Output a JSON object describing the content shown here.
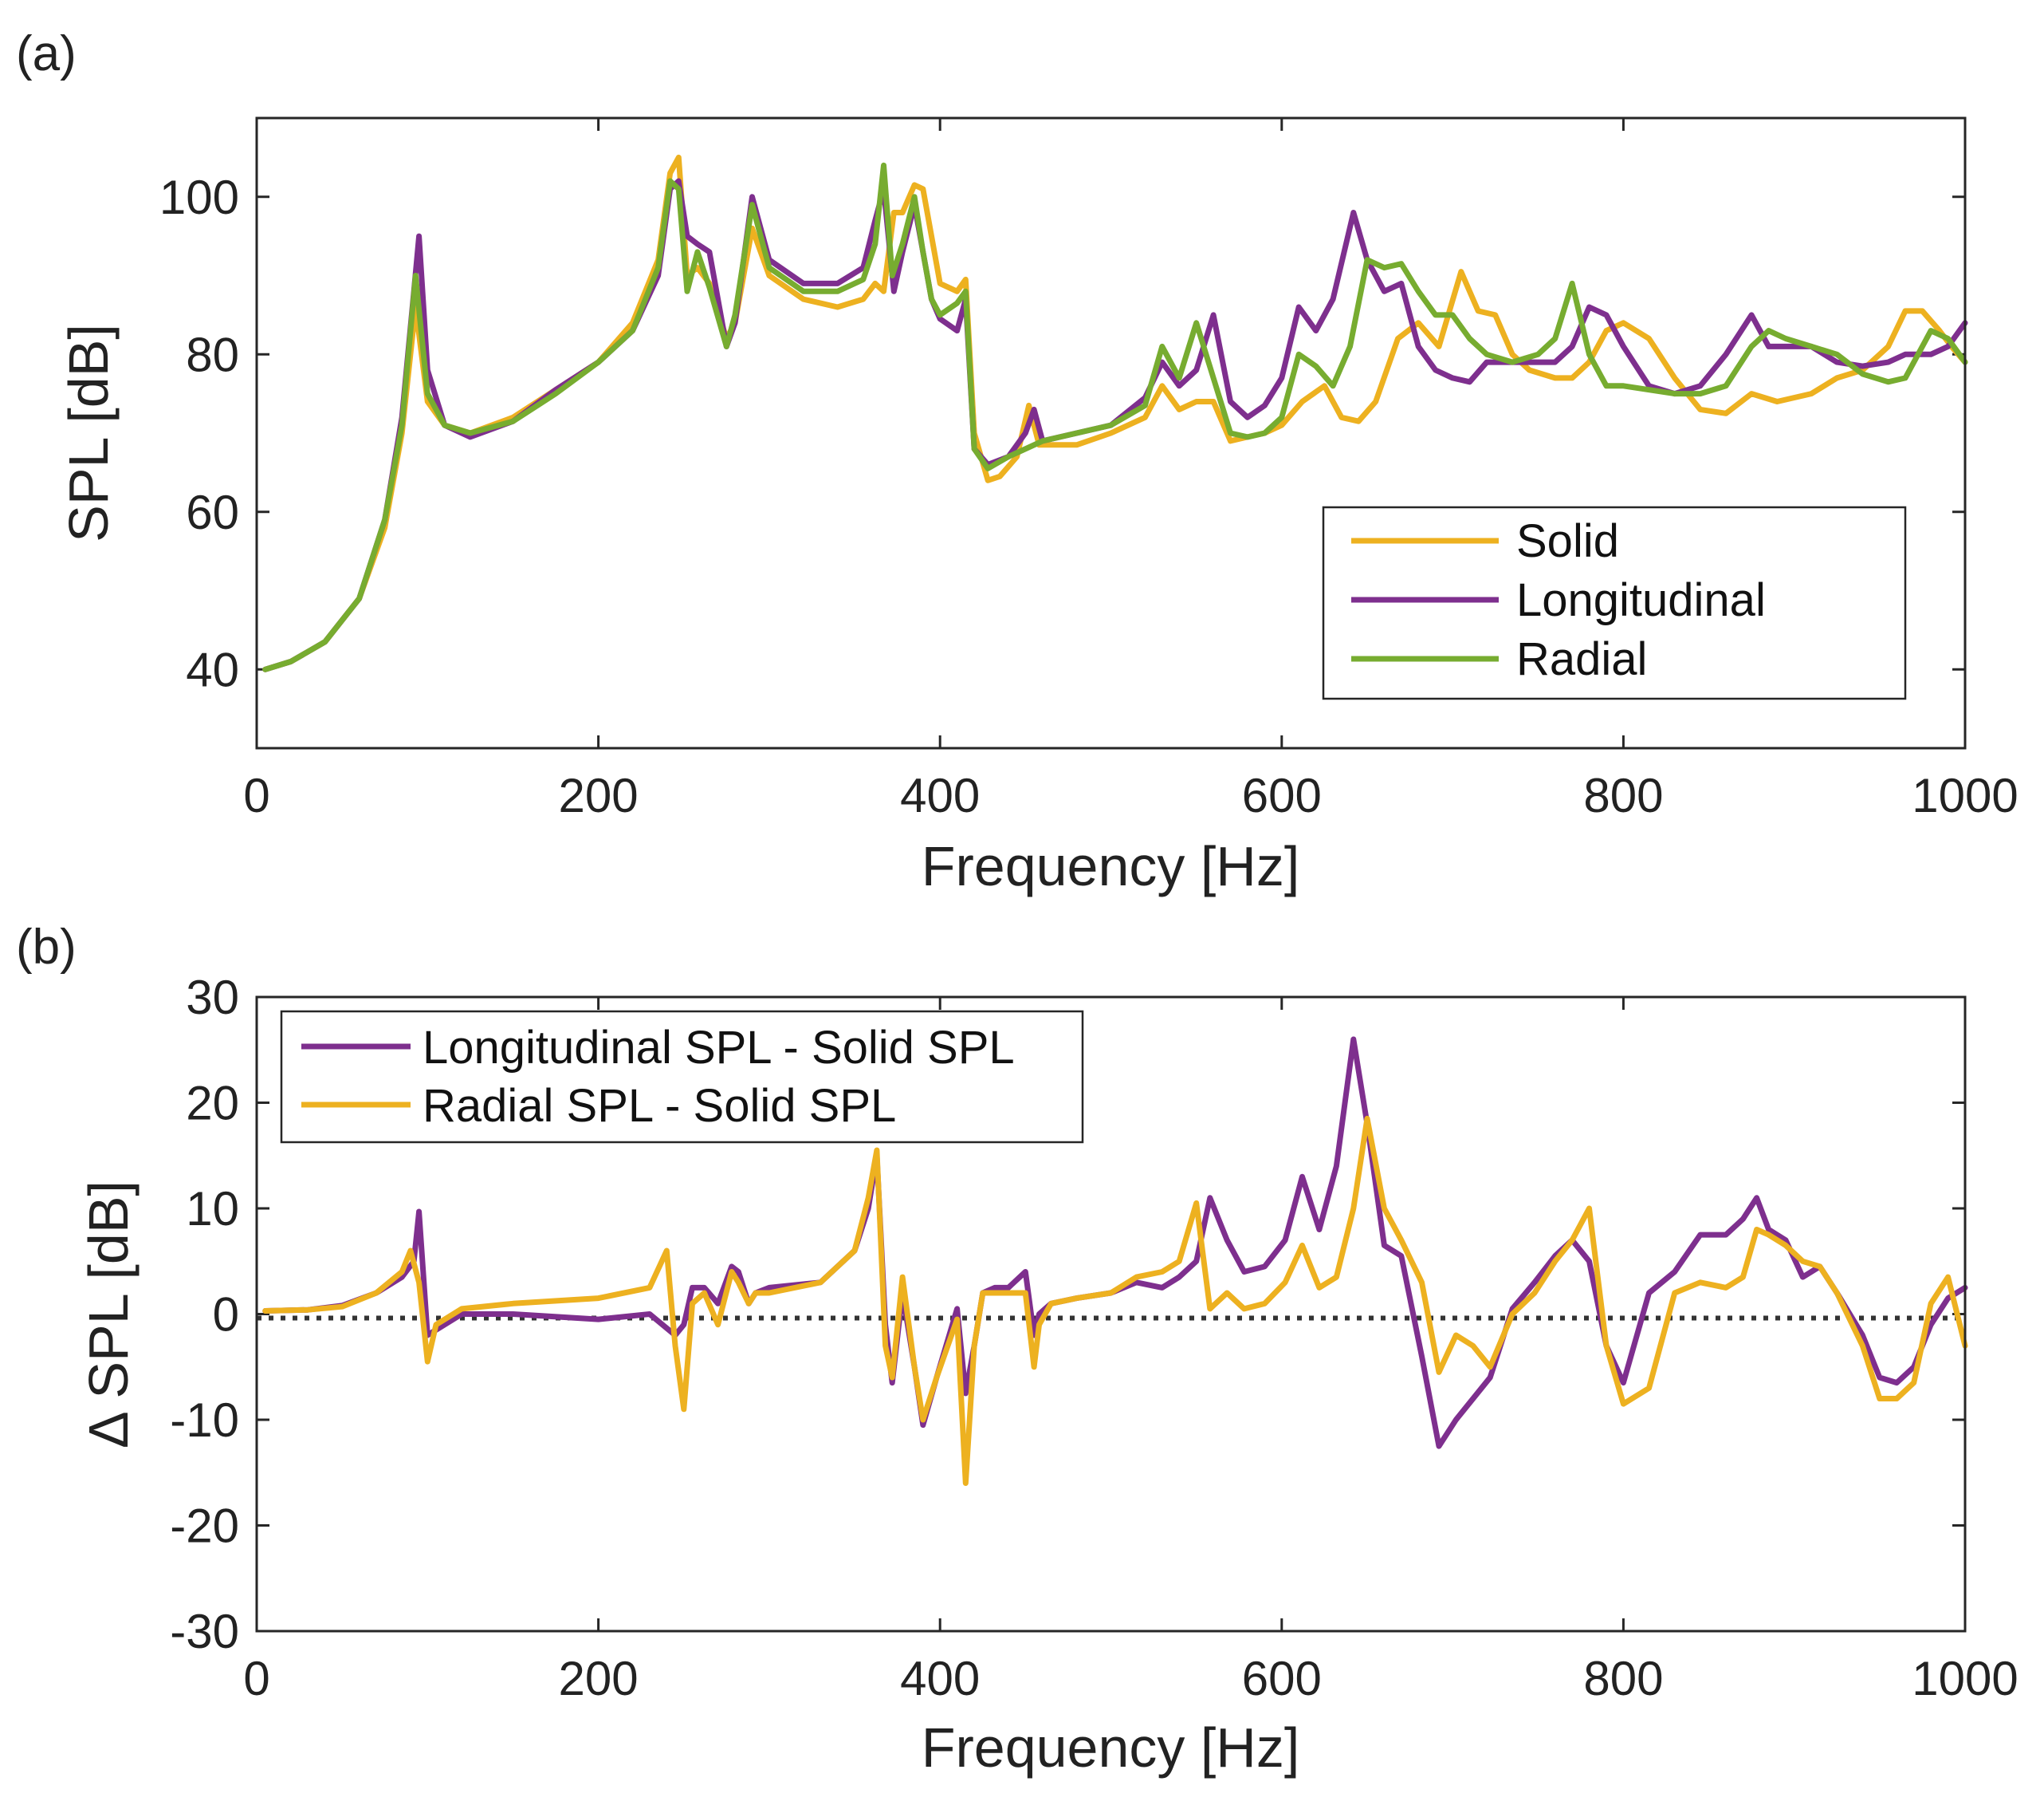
{
  "colors": {
    "solid": "#EDB120",
    "longitudinal": "#7E2F8E",
    "radial": "#77AC30",
    "zero_line": "#333333"
  },
  "chart_data": [
    {
      "type": "line",
      "panel_label": "(a)",
      "xlabel": "Frequency [Hz]",
      "ylabel": "SPL [dB]",
      "xlim": [
        0,
        1000
      ],
      "ylim": [
        30,
        110
      ],
      "xticks": [
        0,
        200,
        400,
        600,
        800,
        1000
      ],
      "yticks": [
        40,
        60,
        80,
        100
      ],
      "xtick_labels": [
        "0",
        "200",
        "400",
        "600",
        "800",
        "1000"
      ],
      "ytick_labels": [
        "40",
        "60",
        "80",
        "100"
      ],
      "legend": {
        "position": "lower-right",
        "entries": [
          "Solid",
          "Longitudinal",
          "Radial"
        ]
      },
      "series": [
        {
          "name": "Solid",
          "color_key": "solid",
          "x": [
            5,
            20,
            40,
            60,
            75,
            85,
            93,
            100,
            110,
            125,
            150,
            175,
            200,
            220,
            235,
            242,
            247,
            252,
            258,
            265,
            275,
            280,
            290,
            300,
            320,
            340,
            355,
            362,
            367,
            373,
            378,
            385,
            390,
            395,
            400,
            410,
            415,
            420,
            428,
            435,
            445,
            452,
            458,
            465,
            480,
            500,
            520,
            530,
            540,
            550,
            560,
            570,
            580,
            590,
            600,
            612,
            625,
            635,
            645,
            655,
            668,
            680,
            692,
            705,
            715,
            725,
            735,
            745,
            760,
            770,
            780,
            790,
            800,
            815,
            830,
            845,
            860,
            875,
            890,
            910,
            925,
            940,
            955,
            965,
            975,
            985,
            992,
            1000
          ],
          "y": [
            40,
            41,
            43.5,
            49,
            58,
            70,
            86,
            74,
            71,
            70,
            72,
            75.5,
            79,
            84,
            92,
            103,
            105,
            90,
            91,
            89,
            82,
            84,
            96,
            90,
            87,
            86,
            87,
            89,
            88,
            98,
            98,
            101.5,
            101,
            95,
            89,
            88,
            89.5,
            70,
            64,
            64.5,
            67,
            73.5,
            68.5,
            68.5,
            68.5,
            70,
            72,
            76,
            73,
            74,
            74,
            69,
            69.5,
            70,
            71,
            74,
            76,
            72,
            71.5,
            74,
            82,
            84,
            81,
            90.5,
            85.5,
            85,
            80,
            78,
            77,
            77,
            79,
            83,
            84,
            82,
            77,
            73,
            72.5,
            75,
            74,
            75,
            77,
            78,
            81,
            85.5,
            85.5,
            83,
            81,
            79
          ]
        },
        {
          "name": "Longitudinal",
          "color_key": "longitudinal",
          "x": [
            5,
            20,
            40,
            60,
            75,
            85,
            92,
            95,
            100,
            110,
            125,
            150,
            175,
            200,
            220,
            235,
            242,
            247,
            252,
            258,
            265,
            275,
            280,
            290,
            300,
            320,
            340,
            355,
            362,
            367,
            373,
            378,
            385,
            390,
            395,
            400,
            410,
            415,
            420,
            428,
            440,
            450,
            455,
            460,
            480,
            500,
            520,
            530,
            540,
            550,
            560,
            570,
            580,
            590,
            600,
            610,
            620,
            630,
            642,
            650,
            660,
            670,
            680,
            690,
            700,
            710,
            720,
            735,
            750,
            760,
            770,
            780,
            790,
            800,
            815,
            830,
            845,
            860,
            875,
            885,
            895,
            910,
            925,
            940,
            955,
            965,
            980,
            990,
            1000
          ],
          "y": [
            40,
            41,
            43.5,
            49,
            59,
            72,
            88,
            95,
            78,
            71,
            69.5,
            71.5,
            75.5,
            79,
            83,
            90,
            101,
            102,
            95,
            94,
            93,
            81,
            84,
            100,
            92,
            89,
            89,
            91,
            97,
            101,
            88,
            93,
            99,
            93,
            87,
            84.5,
            83,
            87,
            68,
            66,
            67,
            70,
            73,
            69,
            70,
            71,
            74.5,
            79,
            76,
            78,
            85,
            74,
            72,
            73.5,
            77,
            86,
            83,
            87,
            98,
            92,
            88,
            89,
            81,
            78,
            77,
            76.5,
            79,
            79,
            79,
            79,
            81,
            86,
            85,
            81,
            76,
            75,
            76,
            80,
            85,
            81,
            81,
            81,
            79,
            78.5,
            79,
            80,
            80,
            81,
            84
          ]
        },
        {
          "name": "Radial",
          "color_key": "radial",
          "x": [
            5,
            20,
            40,
            60,
            75,
            85,
            93,
            100,
            110,
            125,
            150,
            175,
            200,
            220,
            235,
            242,
            247,
            252,
            258,
            265,
            275,
            280,
            290,
            300,
            320,
            340,
            355,
            362,
            367,
            372,
            378,
            385,
            390,
            395,
            400,
            410,
            415,
            420,
            428,
            440,
            450,
            460,
            480,
            500,
            520,
            530,
            540,
            550,
            560,
            570,
            580,
            590,
            600,
            610,
            620,
            630,
            640,
            650,
            660,
            670,
            680,
            690,
            700,
            710,
            720,
            735,
            750,
            760,
            770,
            780,
            790,
            800,
            815,
            830,
            845,
            860,
            875,
            885,
            895,
            910,
            925,
            940,
            955,
            965,
            980,
            990,
            1000
          ],
          "y": [
            40,
            41,
            43.5,
            49,
            59,
            71,
            90,
            75,
            71,
            70,
            71.5,
            75,
            79,
            83,
            91,
            102,
            101,
            88,
            93,
            88.5,
            81,
            85,
            99,
            91,
            88,
            88,
            89.5,
            94,
            104,
            90,
            94,
            100,
            93,
            87,
            85,
            86.5,
            88,
            68,
            65.5,
            67,
            68,
            69,
            70,
            71,
            73.5,
            81,
            77,
            84,
            77,
            70,
            69.5,
            70,
            72,
            80,
            78.5,
            76,
            81,
            92,
            91,
            91.5,
            88,
            85,
            85,
            82,
            80,
            79,
            80,
            82,
            89,
            80,
            76,
            76,
            75.5,
            75,
            75,
            76,
            81,
            83,
            82,
            81,
            80,
            77.5,
            76.5,
            77,
            83,
            82,
            79
          ]
        }
      ]
    },
    {
      "type": "line",
      "panel_label": "(b)",
      "xlabel": "Frequency [Hz]",
      "ylabel": "Δ SPL [dB]",
      "xlim": [
        0,
        1000
      ],
      "ylim": [
        -30,
        30
      ],
      "xticks": [
        0,
        200,
        400,
        600,
        800,
        1000
      ],
      "yticks": [
        -30,
        -20,
        -10,
        0,
        10,
        20,
        30
      ],
      "xtick_labels": [
        "0",
        "200",
        "400",
        "600",
        "800",
        "1000"
      ],
      "ytick_labels": [
        "-30",
        "-20",
        "-10",
        "0",
        "10",
        "20",
        "30"
      ],
      "legend": {
        "position": "top-left",
        "entries": [
          "Longitudinal SPL - Solid SPL",
          "Radial SPL - Solid SPL"
        ]
      },
      "reference_line": {
        "y": 0,
        "style": "dotted"
      },
      "series": [
        {
          "name": "Longitudinal SPL - Solid SPL",
          "color_key": "longitudinal",
          "x": [
            5,
            30,
            50,
            70,
            85,
            92,
            95,
            100,
            105,
            120,
            150,
            200,
            230,
            245,
            250,
            255,
            262,
            270,
            278,
            282,
            288,
            292,
            300,
            330,
            350,
            358,
            363,
            368,
            372,
            378,
            385,
            390,
            398,
            410,
            415,
            420,
            425,
            432,
            440,
            450,
            455,
            458,
            465,
            480,
            500,
            515,
            530,
            540,
            550,
            558,
            568,
            578,
            590,
            602,
            612,
            622,
            632,
            642,
            650,
            660,
            670,
            682,
            692,
            702,
            712,
            722,
            735,
            748,
            760,
            770,
            780,
            790,
            800,
            815,
            830,
            845,
            860,
            870,
            878,
            885,
            895,
            905,
            915,
            925,
            940,
            950,
            960,
            970,
            980,
            990,
            1000
          ],
          "y": [
            0.3,
            0.4,
            0.8,
            2,
            3.5,
            5,
            9.7,
            -2,
            -1.5,
            0,
            0,
            -0.5,
            0,
            -2,
            -1,
            2.5,
            2.5,
            1,
            4.5,
            4,
            1,
            2,
            2.5,
            3,
            6,
            10,
            15,
            -1,
            -6.5,
            2,
            -5,
            -10.5,
            -6,
            0.5,
            -7.5,
            -3,
            2,
            2.5,
            2.5,
            4,
            -2,
            0,
            1,
            1.5,
            2,
            3,
            2.5,
            3.5,
            5,
            11,
            7,
            4,
            4.5,
            7,
            13,
            8,
            14,
            26,
            18,
            6.5,
            5.5,
            -4,
            -12.5,
            -10,
            -8,
            -6,
            0.5,
            3,
            5.5,
            7,
            5,
            -3,
            -6.5,
            2,
            4,
            7.5,
            7.5,
            9,
            11,
            8,
            7,
            3.5,
            4.5,
            2,
            -2,
            -6,
            -6.5,
            -5,
            -1,
            1.5,
            2.5
          ]
        },
        {
          "name": "Radial SPL - Solid SPL",
          "color_key": "solid",
          "x": [
            5,
            30,
            50,
            70,
            85,
            90,
            95,
            100,
            105,
            120,
            150,
            200,
            230,
            240,
            245,
            250,
            255,
            262,
            270,
            278,
            282,
            288,
            292,
            300,
            330,
            350,
            358,
            363,
            368,
            372,
            378,
            385,
            390,
            398,
            410,
            415,
            420,
            425,
            432,
            440,
            450,
            455,
            458,
            465,
            480,
            500,
            515,
            530,
            540,
            550,
            558,
            568,
            578,
            590,
            602,
            612,
            622,
            632,
            642,
            650,
            660,
            670,
            682,
            692,
            702,
            712,
            722,
            735,
            748,
            760,
            770,
            780,
            790,
            800,
            815,
            830,
            845,
            860,
            870,
            878,
            885,
            895,
            905,
            915,
            925,
            940,
            950,
            960,
            970,
            980,
            990,
            1000
          ],
          "y": [
            0.3,
            0.4,
            0.7,
            2,
            4,
            6,
            3,
            -4.5,
            -1,
            0.5,
            1,
            1.5,
            2.5,
            6,
            -3,
            -9,
            1,
            2,
            -1,
            4,
            3,
            1,
            2,
            2,
            3,
            6,
            11,
            15.5,
            -3,
            -6,
            3.5,
            -5,
            -10,
            -6,
            -0.5,
            -16,
            -3,
            2,
            2,
            2,
            2,
            -5,
            -1,
            1,
            1.5,
            2,
            3.5,
            4,
            5,
            10.5,
            0.5,
            2,
            0.5,
            1,
            3,
            6.5,
            2.5,
            3.5,
            10,
            18.5,
            10,
            7,
            3,
            -5.5,
            -2,
            -3,
            -5,
            0,
            2,
            5,
            7,
            10,
            -3,
            -8.5,
            -7,
            2,
            3,
            2.5,
            3.5,
            8,
            7.5,
            6.5,
            5,
            4.5,
            2,
            -3,
            -8,
            -8,
            -6.5,
            1,
            3.5,
            -3
          ]
        }
      ]
    }
  ]
}
